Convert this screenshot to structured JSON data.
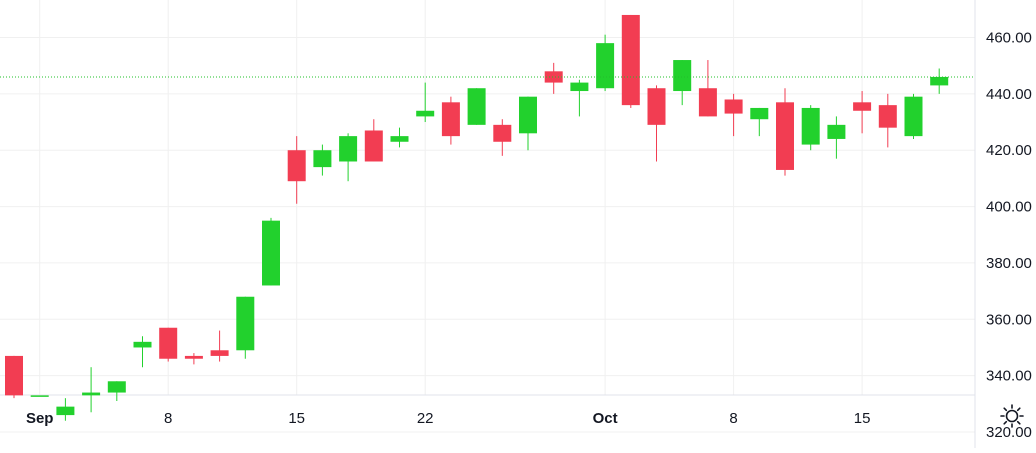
{
  "chart_data": {
    "type": "candlestick",
    "price_axis": {
      "ticks": [
        "460.00",
        "440.00",
        "420.00",
        "400.00",
        "380.00",
        "360.00",
        "340.00",
        "320.00"
      ],
      "range": [
        310,
        470
      ]
    },
    "time_axis": {
      "ticks": [
        {
          "label": "Sep",
          "index": 1
        },
        {
          "label": "8",
          "index": 6
        },
        {
          "label": "15",
          "index": 11
        },
        {
          "label": "22",
          "index": 16
        },
        {
          "label": "Oct",
          "index": 23
        },
        {
          "label": "8",
          "index": 28
        },
        {
          "label": "15",
          "index": 33
        }
      ]
    },
    "last_price_line": 446,
    "colors": {
      "up": "#22d12d",
      "down": "#f23d52",
      "grid": "#f0f0f0",
      "last_line": "#22c02a",
      "text": "#131722"
    },
    "candles": [
      {
        "o": 347,
        "h": 347,
        "l": 332,
        "c": 333
      },
      {
        "o": 333,
        "h": 333,
        "l": 333,
        "c": 333
      },
      {
        "o": 326,
        "h": 332,
        "l": 324,
        "c": 329
      },
      {
        "o": 333,
        "h": 343,
        "l": 327,
        "c": 334
      },
      {
        "o": 334,
        "h": 338,
        "l": 331,
        "c": 338
      },
      {
        "o": 350,
        "h": 354,
        "l": 343,
        "c": 352
      },
      {
        "o": 357,
        "h": 357,
        "l": 345,
        "c": 346
      },
      {
        "o": 347,
        "h": 348,
        "l": 344,
        "c": 346
      },
      {
        "o": 349,
        "h": 356,
        "l": 345,
        "c": 347
      },
      {
        "o": 349,
        "h": 368,
        "l": 346,
        "c": 368
      },
      {
        "o": 372,
        "h": 396,
        "l": 372,
        "c": 395
      },
      {
        "o": 420,
        "h": 425,
        "l": 401,
        "c": 409
      },
      {
        "o": 414,
        "h": 422,
        "l": 411,
        "c": 420
      },
      {
        "o": 416,
        "h": 426,
        "l": 409,
        "c": 425
      },
      {
        "o": 427,
        "h": 431,
        "l": 416,
        "c": 416
      },
      {
        "o": 423,
        "h": 428,
        "l": 421,
        "c": 425
      },
      {
        "o": 432,
        "h": 444,
        "l": 430,
        "c": 434
      },
      {
        "o": 437,
        "h": 439,
        "l": 422,
        "c": 425
      },
      {
        "o": 429,
        "h": 442,
        "l": 429,
        "c": 442
      },
      {
        "o": 429,
        "h": 431,
        "l": 418,
        "c": 423
      },
      {
        "o": 426,
        "h": 439,
        "l": 420,
        "c": 439
      },
      {
        "o": 448,
        "h": 451,
        "l": 440,
        "c": 444
      },
      {
        "o": 441,
        "h": 445,
        "l": 432,
        "c": 444
      },
      {
        "o": 442,
        "h": 461,
        "l": 441,
        "c": 458
      },
      {
        "o": 468,
        "h": 468,
        "l": 435,
        "c": 436
      },
      {
        "o": 442,
        "h": 443,
        "l": 416,
        "c": 429
      },
      {
        "o": 441,
        "h": 452,
        "l": 436,
        "c": 452
      },
      {
        "o": 442,
        "h": 452,
        "l": 432,
        "c": 432
      },
      {
        "o": 438,
        "h": 440,
        "l": 425,
        "c": 433
      },
      {
        "o": 431,
        "h": 435,
        "l": 425,
        "c": 435
      },
      {
        "o": 437,
        "h": 442,
        "l": 411,
        "c": 413
      },
      {
        "o": 422,
        "h": 436,
        "l": 420,
        "c": 435
      },
      {
        "o": 424,
        "h": 432,
        "l": 417,
        "c": 429
      },
      {
        "o": 437,
        "h": 441,
        "l": 426,
        "c": 434
      },
      {
        "o": 436,
        "h": 440,
        "l": 421,
        "c": 428
      },
      {
        "o": 425,
        "h": 440,
        "l": 424,
        "c": 439
      },
      {
        "o": 443,
        "h": 449,
        "l": 440,
        "c": 446
      }
    ]
  },
  "settings": {
    "icon": "gear-icon"
  }
}
